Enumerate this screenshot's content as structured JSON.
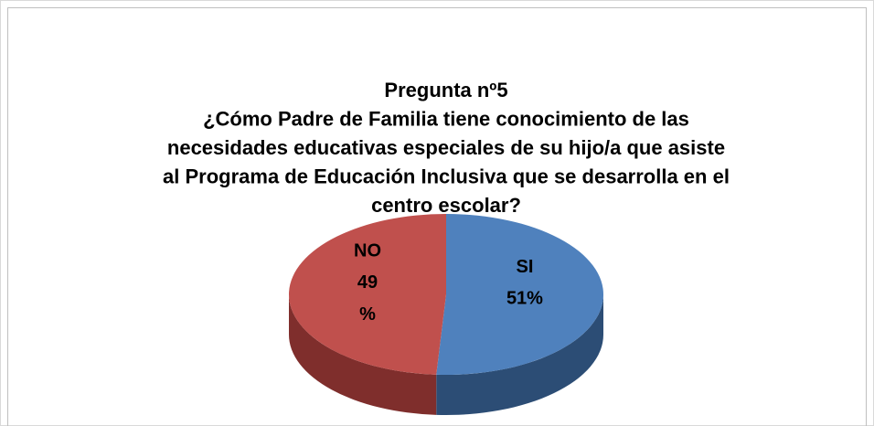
{
  "chart_data": {
    "type": "pie",
    "title": [
      "Pregunta nº5",
      "¿Cómo Padre de Familia tiene conocimiento de las",
      "necesidades educativas especiales de su hijo/a que asiste",
      "al Programa de Educación Inclusiva que se desarrolla en el",
      "centro escolar?"
    ],
    "categories": [
      "SI",
      "NO"
    ],
    "values": [
      51,
      49
    ],
    "value_labels": [
      "51%",
      "49 %"
    ],
    "colors": [
      "#4f81bd",
      "#c0504d"
    ],
    "side_colors": [
      "#2c4d75",
      "#7f2e2c"
    ]
  }
}
